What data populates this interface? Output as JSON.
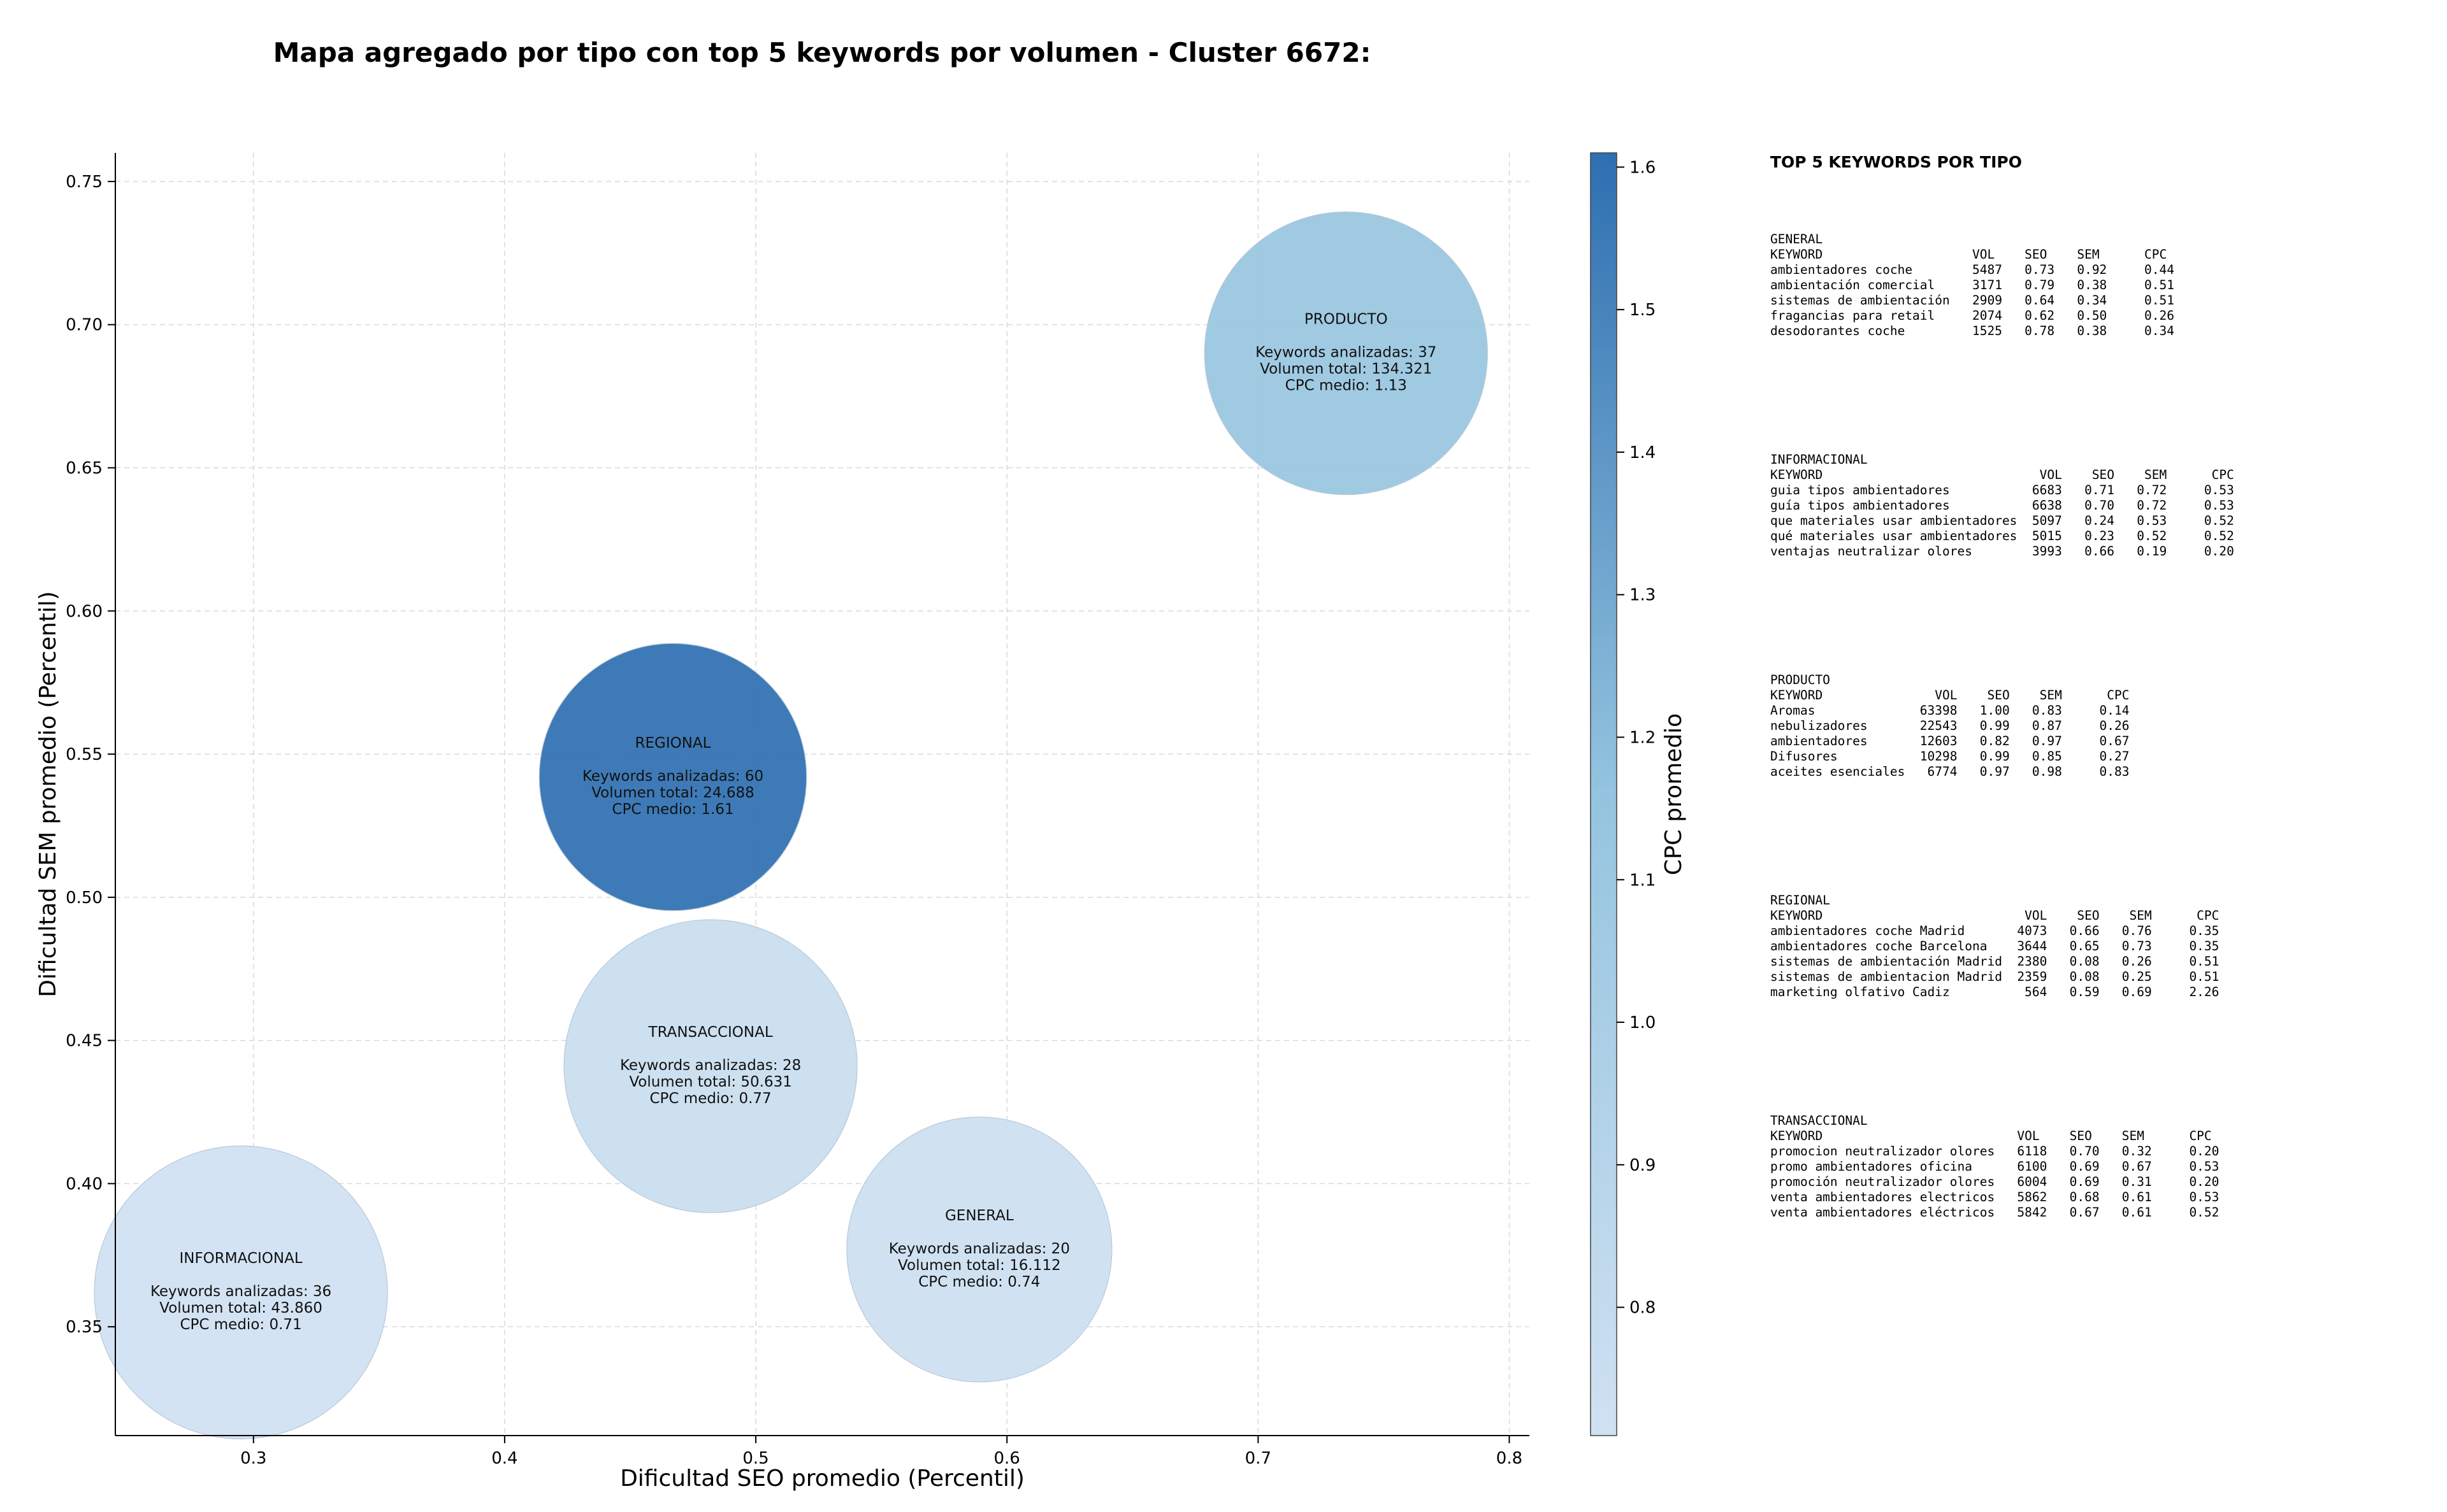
{
  "chart_data": {
    "type": "scatter",
    "title": "Mapa agregado por tipo con top 5 keywords por volumen - Cluster 6672:",
    "xlabel": "Dificultad SEO promedio (Percentil)",
    "ylabel": "Dificultad SEM promedio (Percentil)",
    "xlim": [
      0.245,
      0.808
    ],
    "ylim": [
      0.312,
      0.76
    ],
    "xticks": [
      0.3,
      0.4,
      0.5,
      0.6,
      0.7,
      0.8
    ],
    "xtick_labels": [
      "0.3",
      "0.4",
      "0.5",
      "0.6",
      "0.7",
      "0.8"
    ],
    "yticks": [
      0.35,
      0.4,
      0.45,
      0.5,
      0.55,
      0.6,
      0.65,
      0.7,
      0.75
    ],
    "ytick_labels": [
      "0.35",
      "0.40",
      "0.45",
      "0.50",
      "0.55",
      "0.60",
      "0.65",
      "0.70",
      "0.75"
    ],
    "grid": true,
    "colorbar": {
      "label": "CPC promedio",
      "min": 0.71,
      "max": 1.61,
      "ticks": [
        0.8,
        0.9,
        1.0,
        1.1,
        1.2,
        1.3,
        1.4,
        1.5,
        1.6
      ],
      "tick_labels": [
        "0.8",
        "0.9",
        "1.0",
        "1.1",
        "1.2",
        "1.3",
        "1.4",
        "1.5",
        "1.6"
      ],
      "color_low": "#d0e1f2",
      "color_high": "#2e6fb1"
    },
    "points": [
      {
        "name": "PRODUCTO",
        "x": 0.735,
        "y": 0.69,
        "keywords": 37,
        "volume": 134321,
        "cpc": 1.13,
        "lines": [
          "Keywords analizadas: 37",
          "Volumen total: 134.321",
          "CPC medio: 1.13"
        ]
      },
      {
        "name": "REGIONAL",
        "x": 0.467,
        "y": 0.542,
        "keywords": 60,
        "volume": 24688,
        "cpc": 1.61,
        "lines": [
          "Keywords analizadas: 60",
          "Volumen total: 24.688",
          "CPC medio: 1.61"
        ]
      },
      {
        "name": "TRANSACCIONAL",
        "x": 0.482,
        "y": 0.441,
        "keywords": 28,
        "volume": 50631,
        "cpc": 0.77,
        "lines": [
          "Keywords analizadas: 28",
          "Volumen total: 50.631",
          "CPC medio: 0.77"
        ]
      },
      {
        "name": "GENERAL",
        "x": 0.589,
        "y": 0.377,
        "keywords": 20,
        "volume": 16112,
        "cpc": 0.74,
        "lines": [
          "Keywords analizadas: 20",
          "Volumen total: 16.112",
          "CPC medio: 0.74"
        ]
      },
      {
        "name": "INFORMACIONAL",
        "x": 0.295,
        "y": 0.362,
        "keywords": 36,
        "volume": 43860,
        "cpc": 0.71,
        "lines": [
          "Keywords analizadas: 36",
          "Volumen total: 43.860",
          "CPC medio: 0.71"
        ]
      }
    ]
  },
  "keywords_panel": {
    "heading": "TOP 5 KEYWORDS POR TIPO",
    "blocks": [
      {
        "type": "GENERAL",
        "header": "KEYWORD                    VOL    SEO    SEM      CPC",
        "rows": [
          "ambientadores coche        5487   0.73   0.92     0.44",
          "ambientación comercial     3171   0.79   0.38     0.51",
          "sistemas de ambientación   2909   0.64   0.34     0.51",
          "fragancias para retail     2074   0.62   0.50     0.26",
          "desodorantes coche         1525   0.78   0.38     0.34"
        ]
      },
      {
        "type": "INFORMACIONAL",
        "header": "KEYWORD                             VOL    SEO    SEM      CPC",
        "rows": [
          "guia tipos ambientadores           6683   0.71   0.72     0.53",
          "guía tipos ambientadores           6638   0.70   0.72     0.53",
          "que materiales usar ambientadores  5097   0.24   0.53     0.52",
          "qué materiales usar ambientadores  5015   0.23   0.52     0.52",
          "ventajas neutralizar olores        3993   0.66   0.19     0.20"
        ]
      },
      {
        "type": "PRODUCTO",
        "header": "KEYWORD               VOL    SEO    SEM      CPC",
        "rows": [
          "Aromas              63398   1.00   0.83     0.14",
          "nebulizadores       22543   0.99   0.87     0.26",
          "ambientadores       12603   0.82   0.97     0.67",
          "Difusores           10298   0.99   0.85     0.27",
          "aceites esenciales   6774   0.97   0.98     0.83"
        ]
      },
      {
        "type": "REGIONAL",
        "header": "KEYWORD                           VOL    SEO    SEM      CPC",
        "rows": [
          "ambientadores coche Madrid       4073   0.66   0.76     0.35",
          "ambientadores coche Barcelona    3644   0.65   0.73     0.35",
          "sistemas de ambientación Madrid  2380   0.08   0.26     0.51",
          "sistemas de ambientacion Madrid  2359   0.08   0.25     0.51",
          "marketing olfativo Cadiz          564   0.59   0.69     2.26"
        ]
      },
      {
        "type": "TRANSACCIONAL",
        "header": "KEYWORD                          VOL    SEO    SEM      CPC",
        "rows": [
          "promocion neutralizador olores   6118   0.70   0.32     0.20",
          "promo ambientadores oficina      6100   0.69   0.67     0.53",
          "promoción neutralizador olores   6004   0.69   0.31     0.20",
          "venta ambientadores electricos   5862   0.68   0.61     0.53",
          "venta ambientadores eléctricos   5842   0.67   0.61     0.52"
        ]
      }
    ]
  }
}
